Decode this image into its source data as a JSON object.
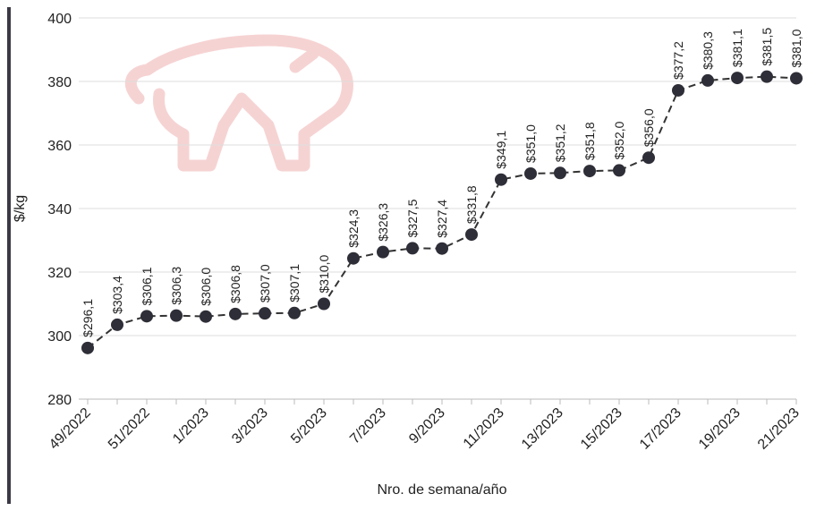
{
  "chart_data": {
    "type": "line",
    "y_label": "$/kg",
    "x_label": "Nro. de semana/año",
    "categories": [
      "49/2022",
      null,
      "51/2022",
      null,
      "1/2023",
      null,
      "3/2023",
      null,
      "5/2023",
      null,
      "7/2023",
      null,
      "9/2023",
      null,
      "11/2023",
      null,
      "13/2023",
      null,
      "15/2023",
      null,
      "17/2023",
      null,
      "19/2023",
      null,
      "21/2023"
    ],
    "values": [
      296.1,
      303.4,
      306.1,
      306.3,
      306.0,
      306.8,
      307.0,
      307.1,
      310.0,
      324.3,
      326.3,
      327.5,
      327.4,
      331.8,
      349.1,
      351.0,
      351.2,
      351.8,
      352.0,
      356.0,
      377.2,
      380.3,
      381.1,
      381.5,
      381.0
    ],
    "value_labels": [
      "$296,1",
      "$303,4",
      "$306,1",
      "$306,3",
      "$306,0",
      "$306,8",
      "$307,0",
      "$307,1",
      "$310,0",
      "$324,3",
      "$326,3",
      "$327,5",
      "$327,4",
      "$331,8",
      "$349,1",
      "$351,0",
      "$351,2",
      "$351,8",
      "$352,0",
      "$356,0",
      "$377,2",
      "$380,3",
      "$381,1",
      "$381,5",
      "$381,0"
    ],
    "color": "#2e2e38",
    "ylim": [
      280,
      400
    ],
    "yticks": [
      280,
      300,
      320,
      340,
      360,
      380,
      400
    ],
    "grid": true
  }
}
